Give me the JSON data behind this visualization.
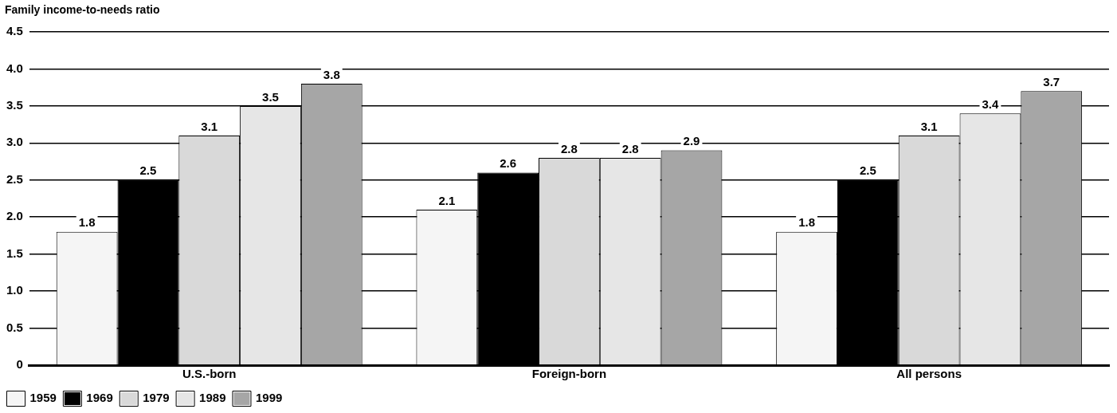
{
  "chart_data": {
    "type": "bar",
    "ylabel": "Family income-to-needs ratio",
    "categories": [
      "U.S.-born",
      "Foreign-born",
      "All persons"
    ],
    "series": [
      {
        "name": "1959",
        "color": "#f5f5f5",
        "values": [
          1.8,
          2.1,
          1.8
        ]
      },
      {
        "name": "1969",
        "color": "#000000",
        "values": [
          2.5,
          2.6,
          2.5
        ]
      },
      {
        "name": "1979",
        "color": "#d9d9d9",
        "values": [
          3.1,
          2.8,
          3.1
        ]
      },
      {
        "name": "1989",
        "color": "#e6e6e6",
        "values": [
          3.5,
          2.8,
          3.4
        ]
      },
      {
        "name": "1999",
        "color": "#a6a6a6",
        "values": [
          3.8,
          2.9,
          3.7
        ]
      }
    ],
    "ylim": [
      0,
      4.5
    ],
    "yticks": [
      0,
      0.5,
      {
        "value": 1,
        "label": "1.0"
      },
      1.5,
      {
        "value": 2,
        "label": "2.0"
      },
      2.5,
      {
        "value": 3,
        "label": "3.0"
      },
      3.5,
      {
        "value": 4,
        "label": "4.0"
      },
      4.5
    ],
    "grid": "y",
    "legend": "bottom left",
    "data_labels": true
  }
}
